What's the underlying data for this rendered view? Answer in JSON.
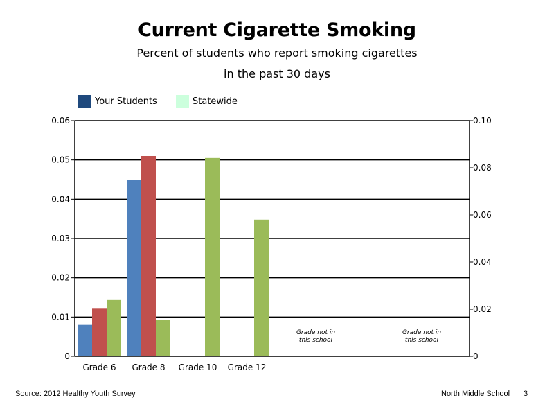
{
  "chart_data": {
    "type": "bar",
    "title": "Current Cigarette Smoking",
    "subtitle": [
      "Percent of students who report smoking cigarettes",
      "in the past 30 days"
    ],
    "categories": [
      "Grade 6",
      "Grade 8",
      "Grade 10",
      "Grade 12"
    ],
    "series": [
      {
        "name": "Your Students",
        "color": "#4F81BD",
        "legend_color": "#1F497D",
        "values": [
          0.008,
          0.045,
          null,
          null
        ]
      },
      {
        "name": "",
        "color": "#C0504D",
        "values": [
          0.0123,
          0.051,
          null,
          null
        ]
      },
      {
        "name": "Statewide",
        "color": "#9BBB59",
        "legend_color": "#CCFFDD",
        "values": [
          0.0145,
          0.0093,
          0.0505,
          0.0348
        ]
      }
    ],
    "y_left": {
      "range": [
        0,
        0.06
      ],
      "ticks": [
        "0",
        "0.01",
        "0.02",
        "0.03",
        "0.04",
        "0.05",
        "0.06"
      ]
    },
    "y_right": {
      "range": [
        0,
        0.1
      ],
      "ticks": [
        "0",
        "0.02",
        "0.04",
        "0.06",
        "0.08",
        "0.10"
      ]
    },
    "grid": true,
    "annotations": [
      "Grade not in this school",
      "Grade not in this school"
    ]
  },
  "footer": {
    "source": "Source: 2012 Healthy Youth Survey",
    "school": "North Middle School",
    "page": "3"
  }
}
